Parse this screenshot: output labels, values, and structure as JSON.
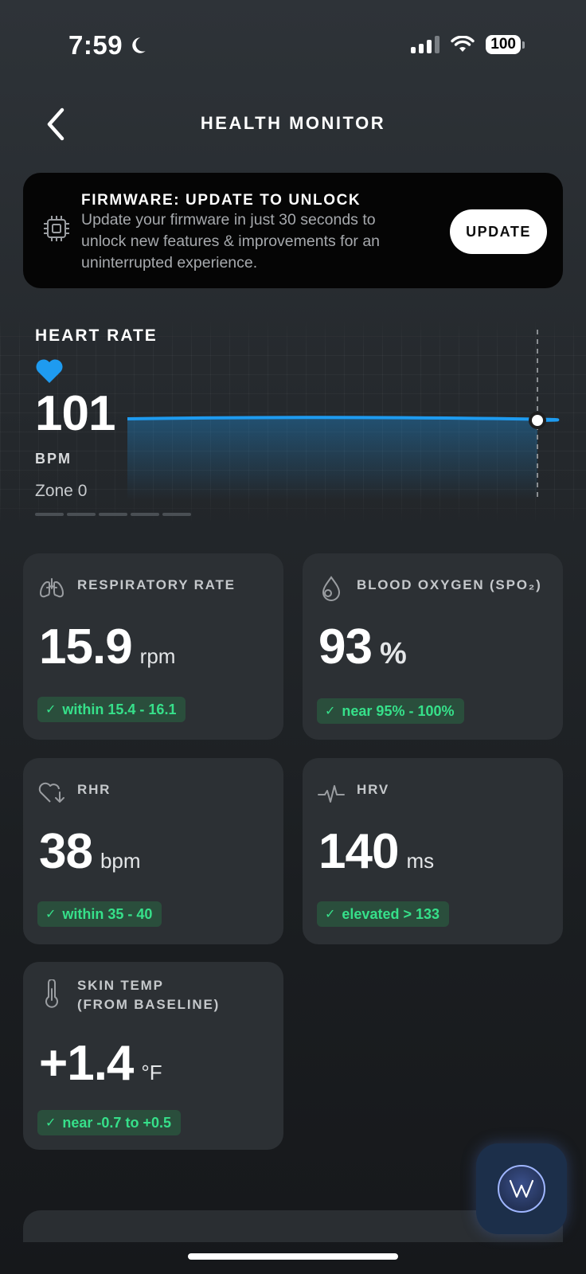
{
  "status_bar": {
    "time": "7:59",
    "battery": "100"
  },
  "header": {
    "title": "HEALTH MONITOR"
  },
  "banner": {
    "title": "FIRMWARE: UPDATE TO UNLOCK",
    "text": "Update your firmware in just 30 seconds to unlock new features & improvements for an uninterrupted experience.",
    "button_label": "UPDATE"
  },
  "heart_rate": {
    "label": "HEART RATE",
    "value": "101",
    "unit": "BPM",
    "zone": "Zone 0",
    "accent_color": "#1e9bf0"
  },
  "cards": [
    {
      "icon": "lungs-icon",
      "label": "RESPIRATORY RATE",
      "value": "15.9",
      "unit": "rpm",
      "badge": "within 15.4 - 16.1"
    },
    {
      "icon": "droplet-icon",
      "label": "BLOOD OXYGEN (SPO₂)",
      "value": "93",
      "unit": "%",
      "badge": "near 95% - 100%"
    },
    {
      "icon": "heart-down-icon",
      "label": "RHR",
      "value": "38",
      "unit": "bpm",
      "badge": "within 35 - 40"
    },
    {
      "icon": "hrv-icon",
      "label": "HRV",
      "value": "140",
      "unit": "ms",
      "badge": "elevated > 133"
    },
    {
      "icon": "thermometer-icon",
      "label_line1": "SKIN TEMP",
      "label_line2": "(FROM BASELINE)",
      "value": "+1.4",
      "unit": "°F",
      "badge": "near -0.7 to +0.5"
    }
  ],
  "colors": {
    "badge_text": "#36e08a",
    "badge_bg": "#2a4e3c",
    "card_bg": "#2c3034"
  }
}
